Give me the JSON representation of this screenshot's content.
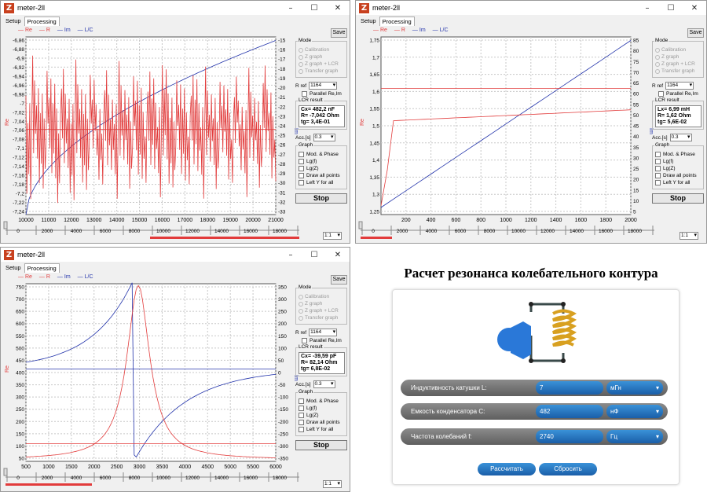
{
  "windows": [
    {
      "title": "meter-2ll",
      "tabs": [
        "Setup",
        "Processing"
      ],
      "legend": [
        "Re",
        "R",
        "Im",
        "L/C"
      ],
      "save": "Save",
      "mode_title": "Mode",
      "modes": [
        "Calibration",
        "Z graph",
        "Z graph + LCR",
        "Transfer graph"
      ],
      "rref_label": "R ref",
      "rref_value": "1164",
      "parallel": "Parallel Re,Im",
      "lcr_title": "LCR result",
      "lcr_lines": [
        "Cx= 482,2 nF",
        "R= -7,042 Ohm",
        "tg= 3,4E-01"
      ],
      "acc_label": "Acc.[s]",
      "acc_value": "0.3",
      "graph_title": "Graph",
      "graph_opts": [
        "Mod. & Phase",
        "Lg(f)",
        "Lg(Z)",
        "Draw all points",
        "Left Y for all"
      ],
      "stop": "Stop",
      "zoom": "1:1",
      "left_label": "Re",
      "right_label": "Im",
      "y_left": [
        "-6,86",
        "-6,88",
        "-6,9",
        "-6,92",
        "-6,94",
        "-6,96",
        "-6,98",
        "-7",
        "-7,02",
        "-7,04",
        "-7,06",
        "-7,08",
        "-7,1",
        "-7,12",
        "-7,14",
        "-7,16",
        "-7,18",
        "-7,2",
        "-7,22",
        "-7,24"
      ],
      "y_right": [
        "-15",
        "-16",
        "-17",
        "-18",
        "-19",
        "-20",
        "-21",
        "-22",
        "-23",
        "-24",
        "-25",
        "-26",
        "-27",
        "-28",
        "-29",
        "-30",
        "-31",
        "-32",
        "-33"
      ],
      "x_ticks": [
        "10000",
        "11000",
        "12000",
        "13000",
        "14000",
        "15000",
        "16000",
        "17000",
        "18000",
        "19000",
        "20000",
        "21000"
      ],
      "slider_ticks": [
        "0",
        "2000",
        "4000",
        "6000",
        "8000",
        "10000",
        "12000",
        "14000",
        "16000",
        "18000",
        "20000"
      ]
    },
    {
      "title": "meter-2ll",
      "tabs": [
        "Setup",
        "Processing"
      ],
      "legend": [
        "Re",
        "R",
        "Im",
        "L/C"
      ],
      "save": "Save",
      "mode_title": "Mode",
      "modes": [
        "Calibration",
        "Z graph",
        "Z graph + LCR",
        "Transfer graph"
      ],
      "rref_label": "R ref",
      "rref_value": "1164",
      "parallel": "Parallel Re,Im",
      "lcr_title": "LCR result",
      "lcr_lines": [
        "Lx= 6,99 mH",
        "R= 1,62 Ohm",
        "tg= 5,6E-02"
      ],
      "acc_label": "Acc.[s]",
      "acc_value": "0.3",
      "graph_title": "Graph",
      "graph_opts": [
        "Mod. & Phase",
        "Lg(f)",
        "Lg(Z)",
        "Draw all points",
        "Left Y for all"
      ],
      "stop": "Stop",
      "zoom": "1:1",
      "left_label": "Re",
      "right_label": "Im",
      "y_left": [
        "1,75",
        "1,7",
        "1,65",
        "1,6",
        "1,55",
        "1,5",
        "1,45",
        "1,4",
        "1,35",
        "1,3",
        "1,25"
      ],
      "y_right": [
        "85",
        "80",
        "75",
        "70",
        "65",
        "60",
        "55",
        "50",
        "45",
        "40",
        "35",
        "30",
        "25",
        "20",
        "15",
        "10",
        "5"
      ],
      "x_ticks": [
        "200",
        "400",
        "600",
        "800",
        "1000",
        "1200",
        "1400",
        "1600",
        "1800",
        "2000"
      ],
      "slider_ticks": [
        "0",
        "2000",
        "4000",
        "6000",
        "8000",
        "10000",
        "12000",
        "14000",
        "16000",
        "18000",
        "20000"
      ]
    },
    {
      "title": "meter-2ll",
      "tabs": [
        "Setup",
        "Processing"
      ],
      "legend": [
        "Re",
        "R",
        "Im",
        "L/C"
      ],
      "save": "Save",
      "mode_title": "Mode",
      "modes": [
        "Calibration",
        "Z graph",
        "Z graph + LCR",
        "Transfer graph"
      ],
      "rref_label": "R ref",
      "rref_value": "1164",
      "parallel": "Parallel Re,Im",
      "lcr_title": "LCR result",
      "lcr_lines": [
        "Cx= -39,59 pF",
        "R= 82,14 Ohm",
        "tg= 6,8E-02"
      ],
      "acc_label": "Acc.[s]",
      "acc_value": "0.3",
      "graph_title": "Graph",
      "graph_opts": [
        "Mod. & Phase",
        "Lg(f)",
        "Lg(Z)",
        "Draw all points",
        "Left Y for all"
      ],
      "stop": "Stop",
      "zoom": "1:1",
      "left_label": "Re",
      "right_label": "Im",
      "y_left": [
        "750",
        "700",
        "650",
        "600",
        "550",
        "500",
        "450",
        "400",
        "350",
        "300",
        "250",
        "200",
        "150",
        "100",
        "50"
      ],
      "y_right": [
        "350",
        "300",
        "250",
        "200",
        "150",
        "100",
        "50",
        "0",
        "-50",
        "-100",
        "-150",
        "-200",
        "-250",
        "-300",
        "-350"
      ],
      "x_ticks": [
        "500",
        "1000",
        "1500",
        "2000",
        "2500",
        "3000",
        "3500",
        "4000",
        "4500",
        "5000",
        "5500",
        "6000"
      ],
      "slider_ticks": [
        "0",
        "2000",
        "4000",
        "6000",
        "8000",
        "10000",
        "12000",
        "14000",
        "16000",
        "18000",
        "20000"
      ]
    }
  ],
  "calc": {
    "title": "Расчет резонанса колебательного контура",
    "rows": [
      {
        "label": "Индуктивность катушки L:",
        "value": "7",
        "unit": "мГн"
      },
      {
        "label": "Емкость конденсатора C:",
        "value": "482",
        "unit": "нФ"
      },
      {
        "label": "Частота колебаний f:",
        "value": "2740",
        "unit": "Гц"
      }
    ],
    "calc_button": "Рассчитать",
    "reset_button": "Сбросить"
  },
  "colors": {
    "re": "#e23b3b",
    "im": "#2233aa",
    "accent": "#1a6cc2"
  }
}
